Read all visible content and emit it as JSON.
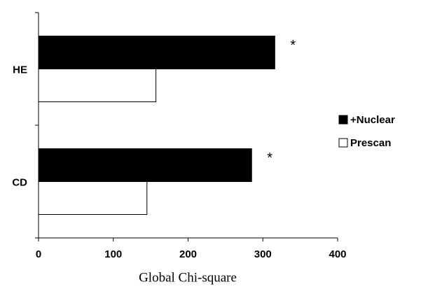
{
  "chart_data": {
    "type": "hbar",
    "x_label": "Global Chi-square",
    "categories": [
      "HE",
      "CD"
    ],
    "series": [
      {
        "name": "+Nuclear",
        "color": "#000000",
        "values": [
          316,
          285
        ]
      },
      {
        "name": "Prescan",
        "color": "#ffffff",
        "values": [
          157,
          145
        ]
      }
    ],
    "annotations": [
      "*",
      "*"
    ],
    "xlim": [
      0,
      400
    ],
    "xticks": [
      0,
      100,
      200,
      300,
      400
    ],
    "legend": "right"
  }
}
